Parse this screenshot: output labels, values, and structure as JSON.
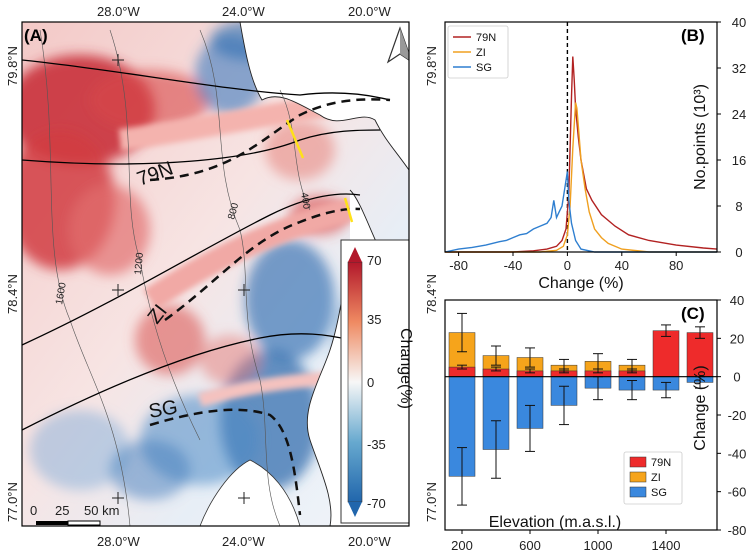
{
  "colors": {
    "n79": "#b22222",
    "zi": "#f0a020",
    "sg": "#2f7fd0",
    "bar_79n": "#ee2b2b",
    "bar_zi": "#f6a41b",
    "bar_sg": "#3a88de",
    "map_red": "#c4323a",
    "map_blue": "#2e6fb0"
  },
  "map_panel": {
    "panel_label": "(A)",
    "top_ticks": [
      "28.0°W",
      "24.0°W",
      "20.0°W"
    ],
    "bottom_ticks": [
      "28.0°W",
      "24.0°W",
      "20.0°W"
    ],
    "left_ticks": [
      "79.8°N",
      "78.4°N",
      "77.0°N"
    ],
    "right_ticks": [
      "79.8°N",
      "78.4°N",
      "77.0°N"
    ],
    "glaciers": [
      "79N",
      "ZI",
      "SG"
    ],
    "contours": [
      "1600",
      "1200",
      "800",
      "400"
    ],
    "scalebar": [
      "0",
      "25",
      "50 km"
    ],
    "colorbar": {
      "title": "Change(%)",
      "ticks": [
        "70",
        "35",
        "0",
        "-35",
        "-70"
      ]
    }
  },
  "chart_data": [
    {
      "panel": "(B)",
      "type": "line",
      "xlabel": "Change (%)",
      "ylabel": "No.points (10³)",
      "xlim": [
        -90,
        110
      ],
      "ylim": [
        0,
        40
      ],
      "xticks": [
        "-80",
        "-40",
        "0",
        "40",
        "80"
      ],
      "yticks": [
        "0",
        "8",
        "16",
        "24",
        "32",
        "40"
      ],
      "legend": [
        "79N",
        "ZI",
        "SG"
      ],
      "legend_position": "top-left",
      "series": [
        {
          "name": "79N",
          "x": [
            -90,
            -60,
            -40,
            -25,
            -15,
            -8,
            -4,
            -1,
            1,
            3,
            4,
            5,
            6,
            8,
            10,
            14,
            18,
            25,
            35,
            45,
            60,
            80,
            100,
            110
          ],
          "y": [
            0,
            0,
            0,
            0.2,
            0.5,
            1,
            2,
            4,
            10,
            27,
            34,
            30,
            25,
            20,
            16,
            11,
            9,
            6.5,
            4.5,
            3,
            2,
            1.2,
            0.7,
            0.5
          ]
        },
        {
          "name": "ZI",
          "x": [
            -90,
            -20,
            -8,
            -3,
            0,
            2,
            4,
            6,
            7,
            8,
            10,
            13,
            16,
            20,
            25,
            30,
            40,
            60,
            110
          ],
          "y": [
            0,
            0,
            0.3,
            1,
            3,
            8,
            18,
            26,
            25,
            22,
            16,
            11,
            7,
            4,
            2.5,
            1.5,
            0.5,
            0,
            0
          ]
        },
        {
          "name": "SG",
          "x": [
            -90,
            -80,
            -70,
            -60,
            -50,
            -45,
            -40,
            -35,
            -30,
            -25,
            -20,
            -15,
            -12,
            -10,
            -8,
            -6,
            -4,
            -2,
            0,
            1,
            3,
            6,
            10,
            20,
            110
          ],
          "y": [
            0,
            0.5,
            0.8,
            1.2,
            1.8,
            2,
            2.5,
            3,
            3.2,
            4,
            4.5,
            5,
            6,
            9,
            6,
            7,
            8,
            11,
            14,
            9,
            5,
            2,
            0.5,
            0,
            0
          ]
        }
      ]
    },
    {
      "panel": "(C)",
      "type": "bar",
      "xlabel": "Elevation (m.a.s.l.)",
      "ylabel": "Change (%)",
      "xticks": [
        "200",
        "600",
        "1000",
        "1400"
      ],
      "ylim": [
        -80,
        40
      ],
      "yticks": [
        "-80",
        "-60",
        "-40",
        "-20",
        "0",
        "20",
        "40"
      ],
      "categories": [
        200,
        400,
        600,
        800,
        1000,
        1200,
        1400,
        1600
      ],
      "legend": [
        "79N",
        "ZI",
        "SG"
      ],
      "legend_position": "bottom-right",
      "series": [
        {
          "name": "ZI",
          "values": [
            23,
            11,
            10,
            6,
            8,
            6,
            0,
            0
          ],
          "errors": [
            10,
            5,
            5,
            3,
            4,
            3,
            0,
            0
          ]
        },
        {
          "name": "79N",
          "values": [
            5,
            4,
            3,
            3,
            3,
            3,
            24,
            23
          ],
          "errors": [
            1,
            1,
            1,
            1,
            1,
            1,
            3,
            3
          ]
        },
        {
          "name": "SG",
          "values": [
            -52,
            -38,
            -27,
            -15,
            -6,
            -7,
            -7,
            -3
          ],
          "errors": [
            15,
            15,
            12,
            10,
            6,
            5,
            4,
            3
          ]
        }
      ]
    }
  ]
}
